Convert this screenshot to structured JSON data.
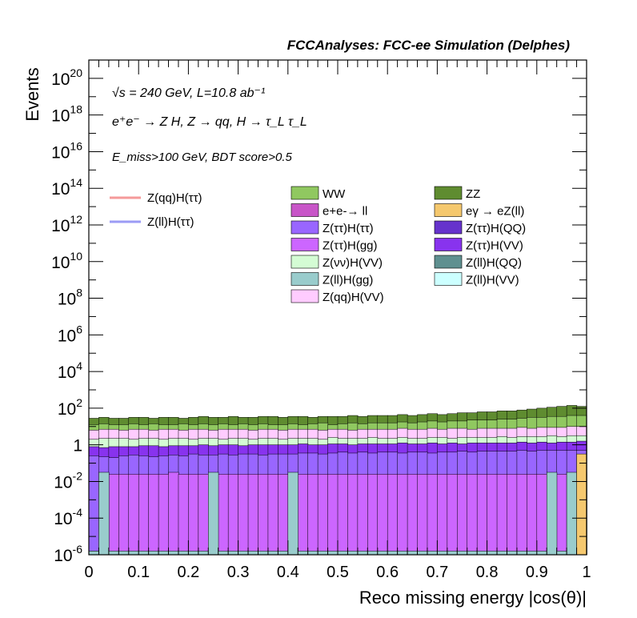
{
  "chart_data": {
    "type": "area",
    "title": "FCCAnalyses: FCC-ee Simulation (Delphes)",
    "ylabel": "Events",
    "xlabel": "Reco missing energy |cos(θ)|",
    "xlim": [
      0,
      1
    ],
    "ylim": [
      1e-06,
      1e+21
    ],
    "y_scale": "log",
    "x_ticks": [
      "0",
      "0.1",
      "0.2",
      "0.3",
      "0.4",
      "0.5",
      "0.6",
      "0.7",
      "0.8",
      "0.9",
      "1"
    ],
    "y_ticks": [
      {
        "base": "10",
        "exp": "20",
        "v": 1e+20
      },
      {
        "base": "10",
        "exp": "18",
        "v": 1e+18
      },
      {
        "base": "10",
        "exp": "16",
        "v": 1e+16
      },
      {
        "base": "10",
        "exp": "14",
        "v": 100000000000000.0
      },
      {
        "base": "10",
        "exp": "12",
        "v": 1000000000000.0
      },
      {
        "base": "10",
        "exp": "10",
        "v": 10000000000.0
      },
      {
        "base": "10",
        "exp": "8",
        "v": 100000000.0
      },
      {
        "base": "10",
        "exp": "6",
        "v": 1000000.0
      },
      {
        "base": "10",
        "exp": "4",
        "v": 10000.0
      },
      {
        "base": "10",
        "exp": "2",
        "v": 100.0
      },
      {
        "base": "1",
        "exp": "",
        "v": 1
      },
      {
        "base": "10",
        "exp": "-2",
        "v": 0.01
      },
      {
        "base": "10",
        "exp": "-4",
        "v": 0.0001
      },
      {
        "base": "10",
        "exp": "-6",
        "v": 1e-06
      }
    ],
    "annotations": {
      "line1": "√s = 240 GeV, L=10.8 ab⁻¹",
      "line2": "e⁺e⁻ → Z H, Z → qq, H → τ_L τ_L",
      "line3": "E_miss>100 GeV, BDT score>0.5"
    },
    "signal_legend": [
      {
        "name": "Z(qq)H(ττ)",
        "color": "#f59a9a"
      },
      {
        "name": "Z(ll)H(ττ)",
        "color": "#9b9bf5"
      }
    ],
    "background_legend": [
      {
        "name": "WW",
        "color": "#90c860"
      },
      {
        "name": "ZZ",
        "color": "#5f8c30"
      },
      {
        "name": "e+e-→ ll",
        "color": "#c855c8"
      },
      {
        "name": "eγ → eZ(ll)",
        "color": "#f5c86e"
      },
      {
        "name": "Z(ττ)H(ττ)",
        "color": "#9966ff"
      },
      {
        "name": "Z(ττ)H(QQ)",
        "color": "#6633cc"
      },
      {
        "name": "Z(ττ)H(gg)",
        "color": "#cc66ff"
      },
      {
        "name": "Z(ττ)H(VV)",
        "color": "#8833ee"
      },
      {
        "name": "Z(νν)H(VV)",
        "color": "#d4fcd4"
      },
      {
        "name": "Z(ll)H(QQ)",
        "color": "#5f9090"
      },
      {
        "name": "Z(ll)H(gg)",
        "color": "#99cccc"
      },
      {
        "name": "Z(ll)H(VV)",
        "color": "#ccffff"
      },
      {
        "name": "Z(qq)H(VV)",
        "color": "#ffccff"
      }
    ],
    "bins": 50,
    "stack": {
      "teal_lowest": [
        -5.8,
        -1.5,
        -5.8,
        -5.8,
        -5.8,
        -5.8,
        -5.8,
        -5.8,
        -5.8,
        -5.8,
        -5.8,
        -5.8,
        -1.5,
        -5.8,
        -5.8,
        -5.8,
        -5.8,
        -5.8,
        -5.8,
        -5.8,
        -1.5,
        -5.8,
        -5.8,
        -5.8,
        -5.8,
        -5.8,
        -5.8,
        -5.8,
        -5.8,
        -5.8,
        -5.8,
        -5.8,
        -5.8,
        -5.8,
        -5.8,
        -5.8,
        -5.8,
        -5.8,
        -5.8,
        -5.8,
        -5.8,
        -5.8,
        -5.8,
        -5.8,
        -5.8,
        -5.8,
        -1.5,
        -5.8,
        -1.5,
        -1.5
      ],
      "ztt_hgg": [
        -5.8,
        -5.8,
        -1.6,
        -1.6,
        -1.6,
        -1.6,
        -1.6,
        -1.6,
        -1.5,
        -1.6,
        -1.6,
        -1.6,
        -1.6,
        -1.6,
        -1.6,
        -1.6,
        -1.6,
        -1.6,
        -1.6,
        -1.6,
        -1.6,
        -1.6,
        -1.6,
        -1.6,
        -1.6,
        -1.6,
        -1.6,
        -1.6,
        -1.6,
        -1.6,
        -1.6,
        -1.6,
        -1.6,
        -1.6,
        -1.6,
        -1.6,
        -1.6,
        -1.6,
        -1.6,
        -1.6,
        -1.6,
        -1.6,
        -1.6,
        -1.6,
        -1.6,
        -1.6,
        -1.6,
        -1.6,
        -1.6,
        -1.6
      ],
      "ztt_htt": [
        -0.6,
        -0.65,
        -0.7,
        -0.6,
        -0.55,
        -0.6,
        -0.65,
        -0.6,
        -0.55,
        -0.6,
        -0.5,
        -0.55,
        -0.55,
        -0.5,
        -0.55,
        -0.5,
        -0.5,
        -0.55,
        -0.5,
        -0.5,
        -0.5,
        -0.45,
        -0.45,
        -0.5,
        -0.45,
        -0.4,
        -0.45,
        -0.4,
        -0.45,
        -0.4,
        -0.4,
        -0.45,
        -0.4,
        -0.4,
        -0.45,
        -0.4,
        -0.4,
        -0.35,
        -0.4,
        -0.35,
        -0.35,
        -0.35,
        -0.35,
        -0.3,
        -0.35,
        -0.3,
        -0.3,
        -0.3,
        -0.3,
        -0.3
      ],
      "ztt_hvv": [
        -0.1,
        -0.15,
        -0.1,
        -0.1,
        -0.1,
        -0.05,
        -0.05,
        -0.1,
        -0.05,
        -0.05,
        -0.05,
        0.0,
        -0.05,
        0.0,
        0.0,
        -0.05,
        0.0,
        0.0,
        0.0,
        0.0,
        0.0,
        0.05,
        0.0,
        0.0,
        0.05,
        0.05,
        0.0,
        0.05,
        0.05,
        0.05,
        0.05,
        0.1,
        0.05,
        0.05,
        0.1,
        0.05,
        0.1,
        0.05,
        0.1,
        0.1,
        0.1,
        0.1,
        0.1,
        0.15,
        0.1,
        0.15,
        0.1,
        0.15,
        0.15,
        0.2
      ],
      "vv_hvv": [
        0.3,
        0.35,
        0.35,
        0.35,
        0.3,
        0.35,
        0.35,
        0.3,
        0.35,
        0.35,
        0.3,
        0.35,
        0.35,
        0.3,
        0.35,
        0.35,
        0.3,
        0.35,
        0.35,
        0.3,
        0.35,
        0.35,
        0.35,
        0.3,
        0.4,
        0.35,
        0.35,
        0.35,
        0.4,
        0.35,
        0.35,
        0.4,
        0.35,
        0.35,
        0.4,
        0.4,
        0.35,
        0.4,
        0.4,
        0.4,
        0.4,
        0.45,
        0.4,
        0.45,
        0.45,
        0.45,
        0.5,
        0.45,
        0.5,
        0.5
      ],
      "qq_hvv": [
        0.8,
        0.85,
        0.85,
        0.8,
        0.85,
        0.85,
        0.8,
        0.85,
        0.85,
        0.8,
        0.85,
        0.85,
        0.8,
        0.85,
        0.85,
        0.85,
        0.8,
        0.85,
        0.85,
        0.8,
        0.85,
        0.85,
        0.85,
        0.8,
        0.85,
        0.85,
        0.8,
        0.85,
        0.85,
        0.85,
        0.85,
        0.9,
        0.85,
        0.85,
        0.9,
        0.85,
        0.9,
        0.9,
        0.85,
        0.9,
        0.9,
        0.9,
        0.9,
        0.95,
        0.9,
        0.95,
        0.95,
        0.95,
        1.0,
        1.0
      ],
      "ww": [
        1.1,
        1.15,
        1.1,
        1.1,
        1.15,
        1.1,
        1.15,
        1.1,
        1.1,
        1.15,
        1.1,
        1.15,
        1.1,
        1.15,
        1.1,
        1.15,
        1.1,
        1.15,
        1.1,
        1.1,
        1.15,
        1.1,
        1.15,
        1.2,
        1.1,
        1.15,
        1.2,
        1.15,
        1.2,
        1.2,
        1.2,
        1.25,
        1.2,
        1.25,
        1.3,
        1.25,
        1.3,
        1.3,
        1.35,
        1.35,
        1.35,
        1.4,
        1.4,
        1.45,
        1.5,
        1.5,
        1.55,
        1.55,
        1.6,
        1.6
      ],
      "zz_top": [
        1.45,
        1.5,
        1.45,
        1.45,
        1.5,
        1.5,
        1.45,
        1.5,
        1.5,
        1.45,
        1.5,
        1.55,
        1.5,
        1.5,
        1.55,
        1.5,
        1.5,
        1.55,
        1.55,
        1.5,
        1.55,
        1.55,
        1.5,
        1.55,
        1.55,
        1.55,
        1.6,
        1.55,
        1.6,
        1.6,
        1.6,
        1.65,
        1.6,
        1.65,
        1.7,
        1.65,
        1.7,
        1.75,
        1.75,
        1.8,
        1.8,
        1.85,
        1.85,
        1.9,
        1.95,
        2.0,
        2.05,
        2.1,
        2.15,
        2.1
      ]
    },
    "grid": false,
    "legend_position": "top"
  }
}
